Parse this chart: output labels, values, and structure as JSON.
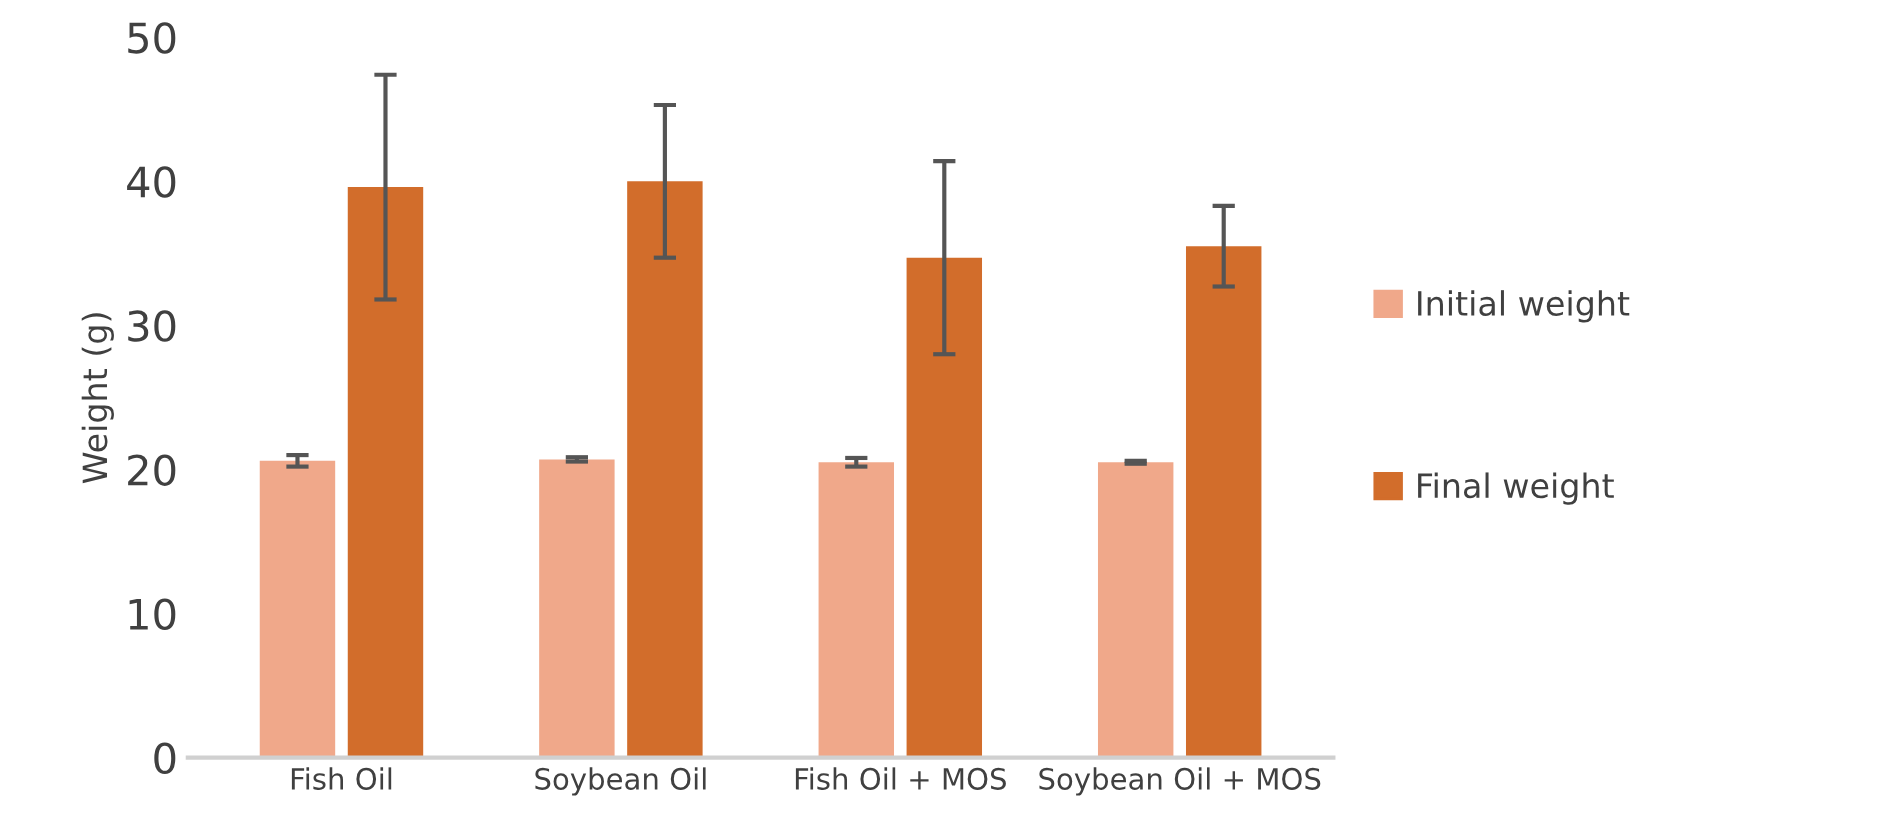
{
  "chart_data": {
    "type": "bar",
    "ylabel": "Weight (g)",
    "categories": [
      "Fish Oil",
      "Soybean Oil",
      "Fish Oil + MOS",
      "Soybean Oil + MOS"
    ],
    "series": [
      {
        "name": "Initial weight",
        "color": "#f0a88a",
        "values": [
          20.6,
          20.7,
          20.5,
          20.5
        ],
        "errors": [
          0.4,
          0.15,
          0.3,
          0.1
        ]
      },
      {
        "name": "Final weight",
        "color": "#d26d2b",
        "values": [
          39.6,
          40.0,
          34.7,
          35.5
        ],
        "errors": [
          7.8,
          5.3,
          6.7,
          2.8
        ]
      }
    ],
    "ylim": [
      0,
      50
    ],
    "yticks": [
      0,
      10,
      20,
      30,
      40,
      50
    ],
    "grid": false,
    "legend": "right"
  }
}
